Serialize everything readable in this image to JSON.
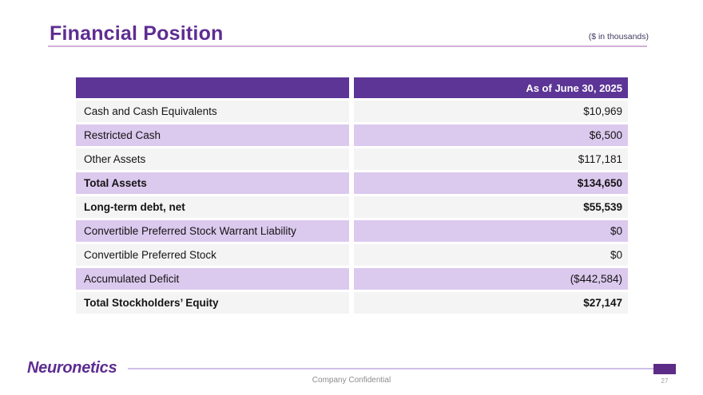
{
  "slide": {
    "title": "Financial Position",
    "units_note": "($ in thousands)"
  },
  "table": {
    "header": {
      "label_column": "",
      "value_column": "As of June 30, 2025"
    },
    "rows": [
      {
        "label": "Cash and Cash Equivalents",
        "value": "$10,969",
        "bold": false
      },
      {
        "label": "Restricted Cash",
        "value": "$6,500",
        "bold": false
      },
      {
        "label": "Other Assets",
        "value": "$117,181",
        "bold": false
      },
      {
        "label": "Total Assets",
        "value": "$134,650",
        "bold": true
      },
      {
        "label": "Long-term debt, net",
        "value": "$55,539",
        "bold": true
      },
      {
        "label": "Convertible Preferred Stock Warrant Liability",
        "value": "$0",
        "bold": false
      },
      {
        "label": "Convertible Preferred Stock",
        "value": "$0",
        "bold": false
      },
      {
        "label": "Accumulated Deficit",
        "value": "($442,584)",
        "bold": false
      },
      {
        "label": "Total Stockholders’ Equity",
        "value": "$27,147",
        "bold": true
      }
    ]
  },
  "footer": {
    "logo": "Neuronetics",
    "confidential": "Company Confidential",
    "page_number": "27"
  },
  "colors": {
    "accent_purple": "#5e2d91",
    "header_purple": "#5c3596",
    "lavender_row": "#dcc9ee",
    "gray_row": "#f4f4f4",
    "title_underline": "#d4afd9",
    "footer_line": "#cfc0e8",
    "footer_rect": "#5c2c87"
  }
}
